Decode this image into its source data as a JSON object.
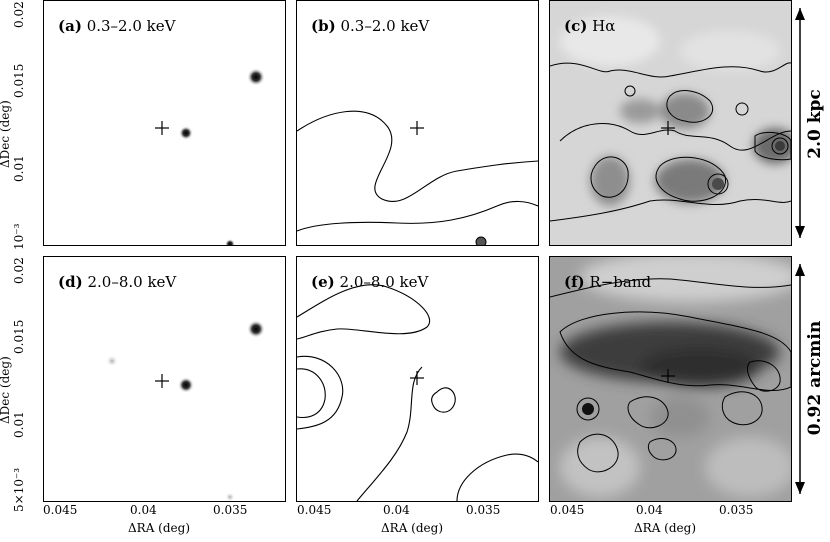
{
  "panels": [
    {
      "id": "a",
      "letter": "(a)",
      "label": "0.3–2.0 keV"
    },
    {
      "id": "b",
      "letter": "(b)",
      "label": "0.3–2.0 keV"
    },
    {
      "id": "c",
      "letter": "(c)",
      "label": "Hα"
    },
    {
      "id": "d",
      "letter": "(d)",
      "label": "2.0–8.0 keV"
    },
    {
      "id": "e",
      "letter": "(e)",
      "label": "2.0–8.0 keV"
    },
    {
      "id": "f",
      "letter": "(f)",
      "label": "R−band"
    }
  ],
  "axes": {
    "ylabel": "ΔDec (deg)",
    "xlabel": "ΔRA (deg)",
    "yticks_top": [
      "0.02",
      "0.015",
      "0.01",
      "10⁻³"
    ],
    "yticks_bottom": [
      "0.02",
      "0.015",
      "0.01",
      "5×10⁻³"
    ],
    "xticks": [
      "0.045",
      "0.04",
      "0.035"
    ]
  },
  "scale_bars": {
    "top": "2.0 kpc",
    "bottom": "0.92 arcmin"
  },
  "colors": {
    "ink": "#000000",
    "light_bg": "#ffffff",
    "gray_mid": "#b8b8b8",
    "gray_dark": "#6a6a6a"
  }
}
